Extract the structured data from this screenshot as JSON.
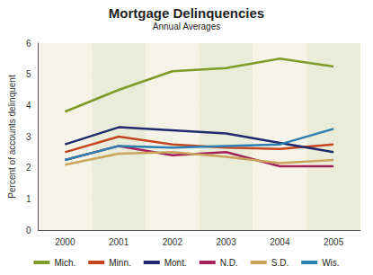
{
  "chart_data": {
    "type": "line",
    "title": "Mortgage Delinquencies",
    "subtitle": "Annual Averages",
    "y_label": "Percent of accounts delinquent",
    "categories": [
      "2000",
      "2001",
      "2002",
      "2003",
      "2004",
      "2005"
    ],
    "series": [
      {
        "name": "Mich.",
        "color": "#7f9a26",
        "values": [
          3.8,
          4.5,
          5.1,
          5.2,
          5.5,
          5.25
        ]
      },
      {
        "name": "Minn.",
        "color": "#c4461f",
        "values": [
          2.5,
          3.0,
          2.75,
          2.65,
          2.6,
          2.75
        ]
      },
      {
        "name": "Mont.",
        "color": "#1f2a6e",
        "values": [
          2.75,
          3.3,
          3.2,
          3.1,
          2.8,
          2.5
        ]
      },
      {
        "name": "N.D.",
        "color": "#a3225c",
        "values": [
          2.25,
          2.7,
          2.4,
          2.5,
          2.05,
          2.05
        ]
      },
      {
        "name": "S.D.",
        "color": "#c9a45a",
        "values": [
          2.1,
          2.45,
          2.5,
          2.35,
          2.15,
          2.25
        ]
      },
      {
        "name": "Wis.",
        "color": "#2b7fb3",
        "values": [
          2.25,
          2.7,
          2.65,
          2.7,
          2.75,
          3.25
        ]
      }
    ],
    "ylim": [
      0,
      6
    ],
    "yticks": [
      0,
      1,
      2,
      3,
      4,
      5,
      6
    ],
    "grid": true,
    "legend": "bottom"
  }
}
